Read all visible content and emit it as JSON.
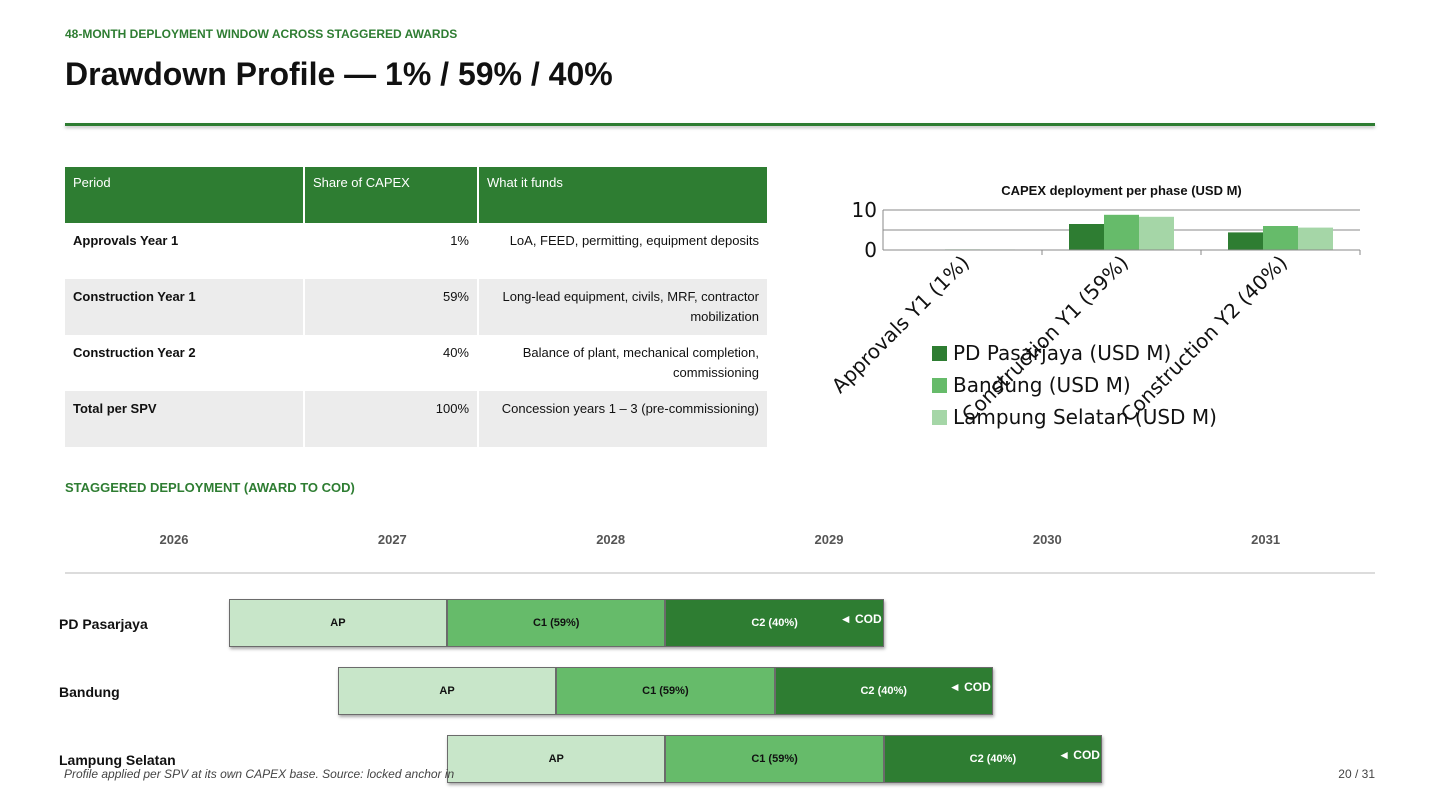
{
  "header": {
    "kicker": "48-MONTH DEPLOYMENT WINDOW ACROSS STAGGERED AWARDS",
    "title": "Drawdown Profile — 1% / 59% / 40%"
  },
  "table": {
    "headers": [
      "Period",
      "Share of CAPEX",
      "What it funds"
    ],
    "rows": [
      {
        "period": "Approvals Year 1",
        "share": "1%",
        "funds": "LoA, FEED, permitting, equipment deposits"
      },
      {
        "period": "Construction Year 1",
        "share": "59%",
        "funds": "Long-lead equipment, civils, MRF, contractor mobilization"
      },
      {
        "period": "Construction Year 2",
        "share": "40%",
        "funds": "Balance of plant, mechanical completion, commissioning"
      },
      {
        "period": "Total per SPV",
        "share": "100%",
        "funds": "Concession years 1 – 3 (pre-commissioning)"
      }
    ]
  },
  "chart_data": {
    "type": "bar",
    "title": "CAPEX deployment per phase (USD M)",
    "categories": [
      "Approvals Y1 (1%)",
      "Construction Y1 (59%)",
      "Construction Y2 (40%)"
    ],
    "series": [
      {
        "name": "PD Pasarjaya (USD M)",
        "color": "#2e7d32",
        "values": [
          0.11,
          6.5,
          4.4
        ]
      },
      {
        "name": "Bandung (USD M)",
        "color": "#66bb6a",
        "values": [
          0.15,
          8.8,
          6.0
        ]
      },
      {
        "name": "Lampung Selatan (USD M)",
        "color": "#a5d6a7",
        "values": [
          0.14,
          8.3,
          5.6
        ]
      }
    ],
    "yticks": [
      0,
      10
    ],
    "ylim": [
      0,
      10
    ],
    "grid": true,
    "legend": "bottom"
  },
  "timeline": {
    "section_label": "STAGGERED DEPLOYMENT (AWARD TO COD)",
    "years": [
      "2026",
      "2027",
      "2028",
      "2029",
      "2030",
      "2031"
    ],
    "cod_label": "◄ COD",
    "rows": [
      {
        "name": "PD Pasarjaya",
        "start_year_offset": 0.75,
        "segments": [
          "AP",
          "C1 (59%)",
          "C2 (40%)"
        ]
      },
      {
        "name": "Bandung",
        "start_year_offset": 1.25,
        "segments": [
          "AP",
          "C1 (59%)",
          "C2 (40%)"
        ]
      },
      {
        "name": "Lampung Selatan",
        "start_year_offset": 1.75,
        "segments": [
          "AP",
          "C1 (59%)",
          "C2 (40%)"
        ]
      }
    ]
  },
  "footer": {
    "note": "Profile applied per SPV at its own CAPEX base. Source: locked anchor in",
    "page": "20 / 31"
  }
}
